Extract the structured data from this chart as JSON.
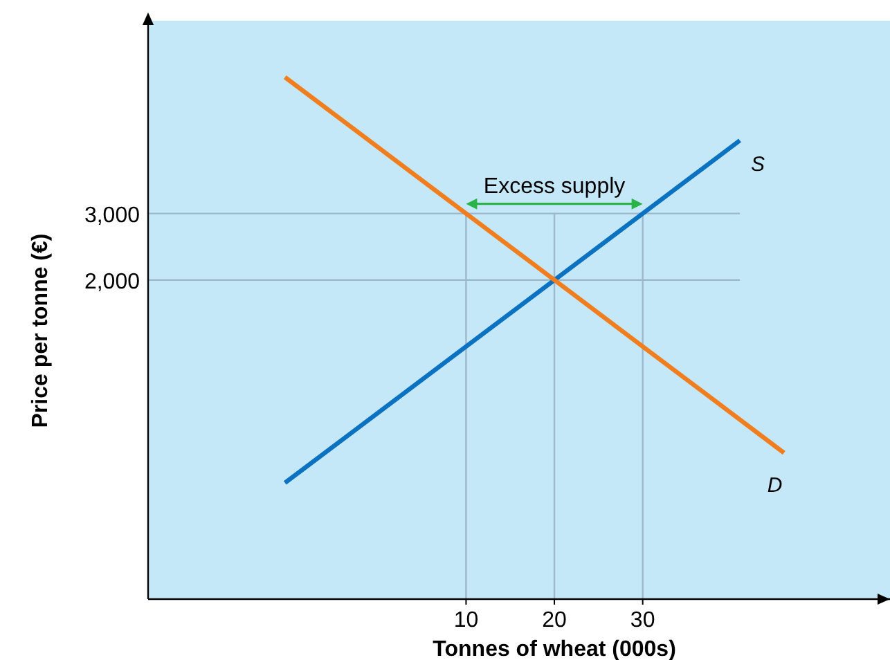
{
  "chart_data": {
    "type": "line",
    "xlabel": "Tonnes of wheat (000s)",
    "ylabel": "Price per tonne (€)",
    "xlim": [
      -26,
      58
    ],
    "ylim": [
      -2800,
      5900
    ],
    "xticks": [
      10,
      20,
      30
    ],
    "yticks": [
      {
        "value": 2000,
        "label": "2,000"
      },
      {
        "value": 3000,
        "label": "3,000"
      }
    ],
    "grid": false,
    "legend": false,
    "marker": "none",
    "series": [
      {
        "name": "S",
        "color": "#0a72c0",
        "x": [
          -10.5,
          41
        ],
        "values": [
          -1050,
          4100
        ]
      },
      {
        "name": "D",
        "color": "#f07e1f",
        "x": [
          -10.5,
          46
        ],
        "values": [
          5050,
          -600
        ]
      }
    ],
    "ref_lines": [
      {
        "axis": "y",
        "value": 3000,
        "color": "#9db8cc"
      },
      {
        "axis": "y",
        "value": 2000,
        "color": "#9db8cc"
      },
      {
        "axis": "x",
        "value": 10,
        "color": "#9db8cc"
      },
      {
        "axis": "x",
        "value": 20,
        "color": "#9db8cc"
      },
      {
        "axis": "x",
        "value": 30,
        "color": "#9db8cc"
      }
    ],
    "annotations": [
      {
        "text": "Excess supply",
        "x": 20,
        "y": 3000
      }
    ]
  }
}
